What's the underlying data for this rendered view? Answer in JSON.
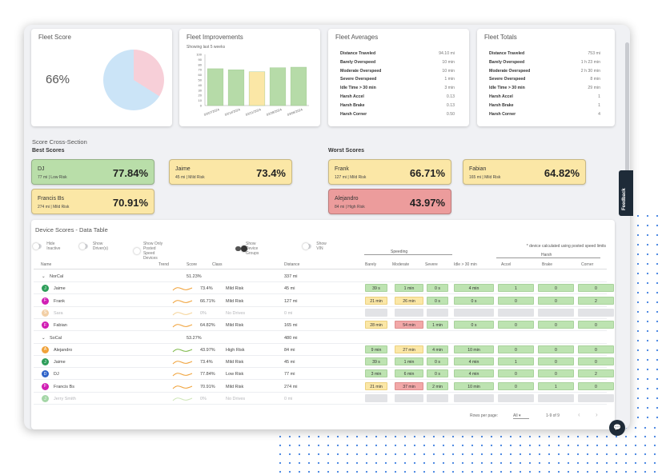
{
  "cards": {
    "fleet_score": {
      "title": "Fleet Score",
      "value": "66%",
      "score_fraction": 0.66
    },
    "fleet_improvements": {
      "title": "Fleet Improvements",
      "subtitle": "Showing last 5 weeks"
    },
    "fleet_averages": {
      "title": "Fleet Averages",
      "rows": [
        {
          "label": "Distance Traveled",
          "value": "94.10 mi"
        },
        {
          "label": "Barely Overspeed",
          "value": "10 min"
        },
        {
          "label": "Moderate Overspeed",
          "value": "10 min"
        },
        {
          "label": "Severe Overspeed",
          "value": "1 min"
        },
        {
          "label": "Idle Time > 30 min",
          "value": "3 min"
        },
        {
          "label": "Harsh Accel",
          "value": "0.13"
        },
        {
          "label": "Harsh Brake",
          "value": "0.13"
        },
        {
          "label": "Harsh Corner",
          "value": "0.50"
        }
      ]
    },
    "fleet_totals": {
      "title": "Fleet Totals",
      "rows": [
        {
          "label": "Distance Traveled",
          "value": "753 mi"
        },
        {
          "label": "Barely Overspeed",
          "value": "1 h 23 min"
        },
        {
          "label": "Moderate Overspeed",
          "value": "2 h 30 min"
        },
        {
          "label": "Severe Overspeed",
          "value": "8 min"
        },
        {
          "label": "Idle Time > 30 min",
          "value": "29 min"
        },
        {
          "label": "Harsh Accel",
          "value": "1"
        },
        {
          "label": "Harsh Brake",
          "value": "1"
        },
        {
          "label": "Harsh Corner",
          "value": "4"
        }
      ]
    }
  },
  "chart_data": {
    "type": "bar",
    "categories": [
      "02/07/2024",
      "02/14/2024",
      "02/21/2024",
      "02/28/2024",
      "03/06/2024"
    ],
    "values": [
      72,
      70,
      66,
      74,
      75
    ],
    "colors": [
      "#b6dba8",
      "#b6dba8",
      "#fbe7a6",
      "#b6dba8",
      "#b6dba8"
    ],
    "yticks": [
      "100",
      "90",
      "80",
      "70",
      "60",
      "50",
      "40",
      "30",
      "20",
      "10",
      "0"
    ],
    "ylim": [
      0,
      100
    ]
  },
  "cross_section": {
    "title": "Score Cross-Section",
    "best_title": "Best Scores",
    "worst_title": "Worst Scores",
    "best": [
      {
        "name": "DJ",
        "detail": "77 mi | Low Risk",
        "score": "77.84%",
        "color": "#b9dea9"
      },
      {
        "name": "Jaime",
        "detail": "45 mi | Mild Risk",
        "score": "73.4%",
        "color": "#fbe7a6"
      },
      {
        "name": "Francis Bs",
        "detail": "274 mi | Mild Risk",
        "score": "70.91%",
        "color": "#fbe7a6"
      }
    ],
    "worst": [
      {
        "name": "Frank",
        "detail": "127 mi | Mild Risk",
        "score": "66.71%",
        "color": "#fbe7a6"
      },
      {
        "name": "Fabian",
        "detail": "165 mi | Mild Risk",
        "score": "64.82%",
        "color": "#fbe7a6"
      },
      {
        "name": "Alejandro",
        "detail": "84 mi | High Risk",
        "score": "43.97%",
        "color": "#ec9c9c"
      }
    ]
  },
  "table": {
    "title": "Device Scores - Data Table",
    "toggles": [
      {
        "label": "Hide Inactive",
        "on": false
      },
      {
        "label": "Show Driver(s)",
        "on": false
      },
      {
        "label": "Show Only Posted Speed Devices",
        "on": false
      },
      {
        "label": "Show Device Groups",
        "on": true
      },
      {
        "label": "Show VIN",
        "on": false
      }
    ],
    "note": "* device calculated using posted speed limits",
    "group_headers": {
      "speeding": "Speeding",
      "harsh": "Harsh"
    },
    "headers": {
      "name": "Name",
      "trend": "Trend",
      "score": "Score",
      "class": "Class",
      "distance": "Distance",
      "barely": "Barely",
      "moderate": "Moderate",
      "severe": "Severe",
      "idle": "Idle > 30 min",
      "accel": "Accel",
      "brake": "Brake",
      "corner": "Corner"
    },
    "groups": [
      {
        "name": "NorCal",
        "score": "51.23%",
        "distance": "337 mi",
        "rows": [
          {
            "name": "Jaime",
            "avatar": "J",
            "avatar_color": "#2e9e5a",
            "score": "73.4%",
            "class": "Mild Risk",
            "distance": "45 mi",
            "trend": "#f0a23a",
            "inactive": false,
            "cells": [
              [
                "39 s",
                "g"
              ],
              [
                "1 min",
                "g"
              ],
              [
                "0 s",
                "g"
              ],
              [
                "4 min",
                "g"
              ],
              [
                "1",
                "g"
              ],
              [
                "0",
                "g"
              ],
              [
                "0",
                "g"
              ]
            ]
          },
          {
            "name": "Frank",
            "avatar": "F",
            "avatar_color": "#d11fb4",
            "score": "66.71%",
            "class": "Mild Risk",
            "distance": "127 mi",
            "trend": "#f0a23a",
            "inactive": false,
            "cells": [
              [
                "21 min",
                "y"
              ],
              [
                "26 min",
                "y"
              ],
              [
                "0 s",
                "g"
              ],
              [
                "0 s",
                "g"
              ],
              [
                "0",
                "g"
              ],
              [
                "0",
                "g"
              ],
              [
                "2",
                "g"
              ]
            ]
          },
          {
            "name": "Sara",
            "avatar": "S",
            "avatar_color": "#f2cfa5",
            "score": "0%",
            "class": "No Drives",
            "distance": "0 mi",
            "trend": "#f5d49a",
            "inactive": true,
            "cells": [
              [
                "",
                "n"
              ],
              [
                "",
                "n"
              ],
              [
                "",
                "n"
              ],
              [
                "",
                "n"
              ],
              [
                "",
                "n"
              ],
              [
                "",
                "n"
              ],
              [
                "",
                "n"
              ]
            ]
          },
          {
            "name": "Fabian",
            "avatar": "F",
            "avatar_color": "#d11fb4",
            "score": "64.82%",
            "class": "Mild Risk",
            "distance": "165 mi",
            "trend": "#f0a23a",
            "inactive": false,
            "cells": [
              [
                "28 min",
                "y"
              ],
              [
                "54 min",
                "r"
              ],
              [
                "1 min",
                "g"
              ],
              [
                "0 s",
                "g"
              ],
              [
                "0",
                "g"
              ],
              [
                "0",
                "g"
              ],
              [
                "0",
                "g"
              ]
            ]
          }
        ]
      },
      {
        "name": "SoCal",
        "score": "53.27%",
        "distance": "480 mi",
        "rows": [
          {
            "name": "Alejandro",
            "avatar": "A",
            "avatar_color": "#f0a23a",
            "score": "43.97%",
            "class": "High Risk",
            "distance": "84 mi",
            "trend": "#7fb94a",
            "inactive": false,
            "cells": [
              [
                "9 min",
                "g"
              ],
              [
                "27 min",
                "y"
              ],
              [
                "4 min",
                "g"
              ],
              [
                "10 min",
                "g"
              ],
              [
                "0",
                "g"
              ],
              [
                "0",
                "g"
              ],
              [
                "0",
                "g"
              ]
            ]
          },
          {
            "name": "Jaime",
            "avatar": "J",
            "avatar_color": "#2e9e5a",
            "score": "73.4%",
            "class": "Mild Risk",
            "distance": "45 mi",
            "trend": "#f0a23a",
            "inactive": false,
            "cells": [
              [
                "39 s",
                "g"
              ],
              [
                "1 min",
                "g"
              ],
              [
                "0 s",
                "g"
              ],
              [
                "4 min",
                "g"
              ],
              [
                "1",
                "g"
              ],
              [
                "0",
                "g"
              ],
              [
                "0",
                "g"
              ]
            ]
          },
          {
            "name": "DJ",
            "avatar": "D",
            "avatar_color": "#2f63c8",
            "score": "77.84%",
            "class": "Low Risk",
            "distance": "77 mi",
            "trend": "#f0a23a",
            "inactive": false,
            "cells": [
              [
                "3 min",
                "g"
              ],
              [
                "6 min",
                "g"
              ],
              [
                "0 s",
                "g"
              ],
              [
                "4 min",
                "g"
              ],
              [
                "0",
                "g"
              ],
              [
                "0",
                "g"
              ],
              [
                "2",
                "g"
              ]
            ]
          },
          {
            "name": "Francis Bs",
            "avatar": "F",
            "avatar_color": "#d11fb4",
            "score": "70.91%",
            "class": "Mild Risk",
            "distance": "274 mi",
            "trend": "#f0a23a",
            "inactive": false,
            "cells": [
              [
                "21 min",
                "y"
              ],
              [
                "37 min",
                "r"
              ],
              [
                "2 min",
                "g"
              ],
              [
                "10 min",
                "g"
              ],
              [
                "0",
                "g"
              ],
              [
                "1",
                "g"
              ],
              [
                "0",
                "g"
              ]
            ]
          },
          {
            "name": "Jerry Smith",
            "avatar": "J",
            "avatar_color": "#a5d6a7",
            "score": "0%",
            "class": "No Drives",
            "distance": "0 mi",
            "trend": "#cfe6b8",
            "inactive": true,
            "cells": [
              [
                "",
                "n"
              ],
              [
                "",
                "n"
              ],
              [
                "",
                "n"
              ],
              [
                "",
                "n"
              ],
              [
                "",
                "n"
              ],
              [
                "",
                "n"
              ],
              [
                "",
                "n"
              ]
            ]
          }
        ]
      }
    ],
    "pagination": {
      "rows_label": "Rows per page:",
      "rows_value": "All",
      "range": "1-9 of 9"
    }
  },
  "feedback": {
    "label": "Feedback",
    "icon": "thumbs-icon"
  },
  "fab": {
    "icon": "chat-icon"
  }
}
